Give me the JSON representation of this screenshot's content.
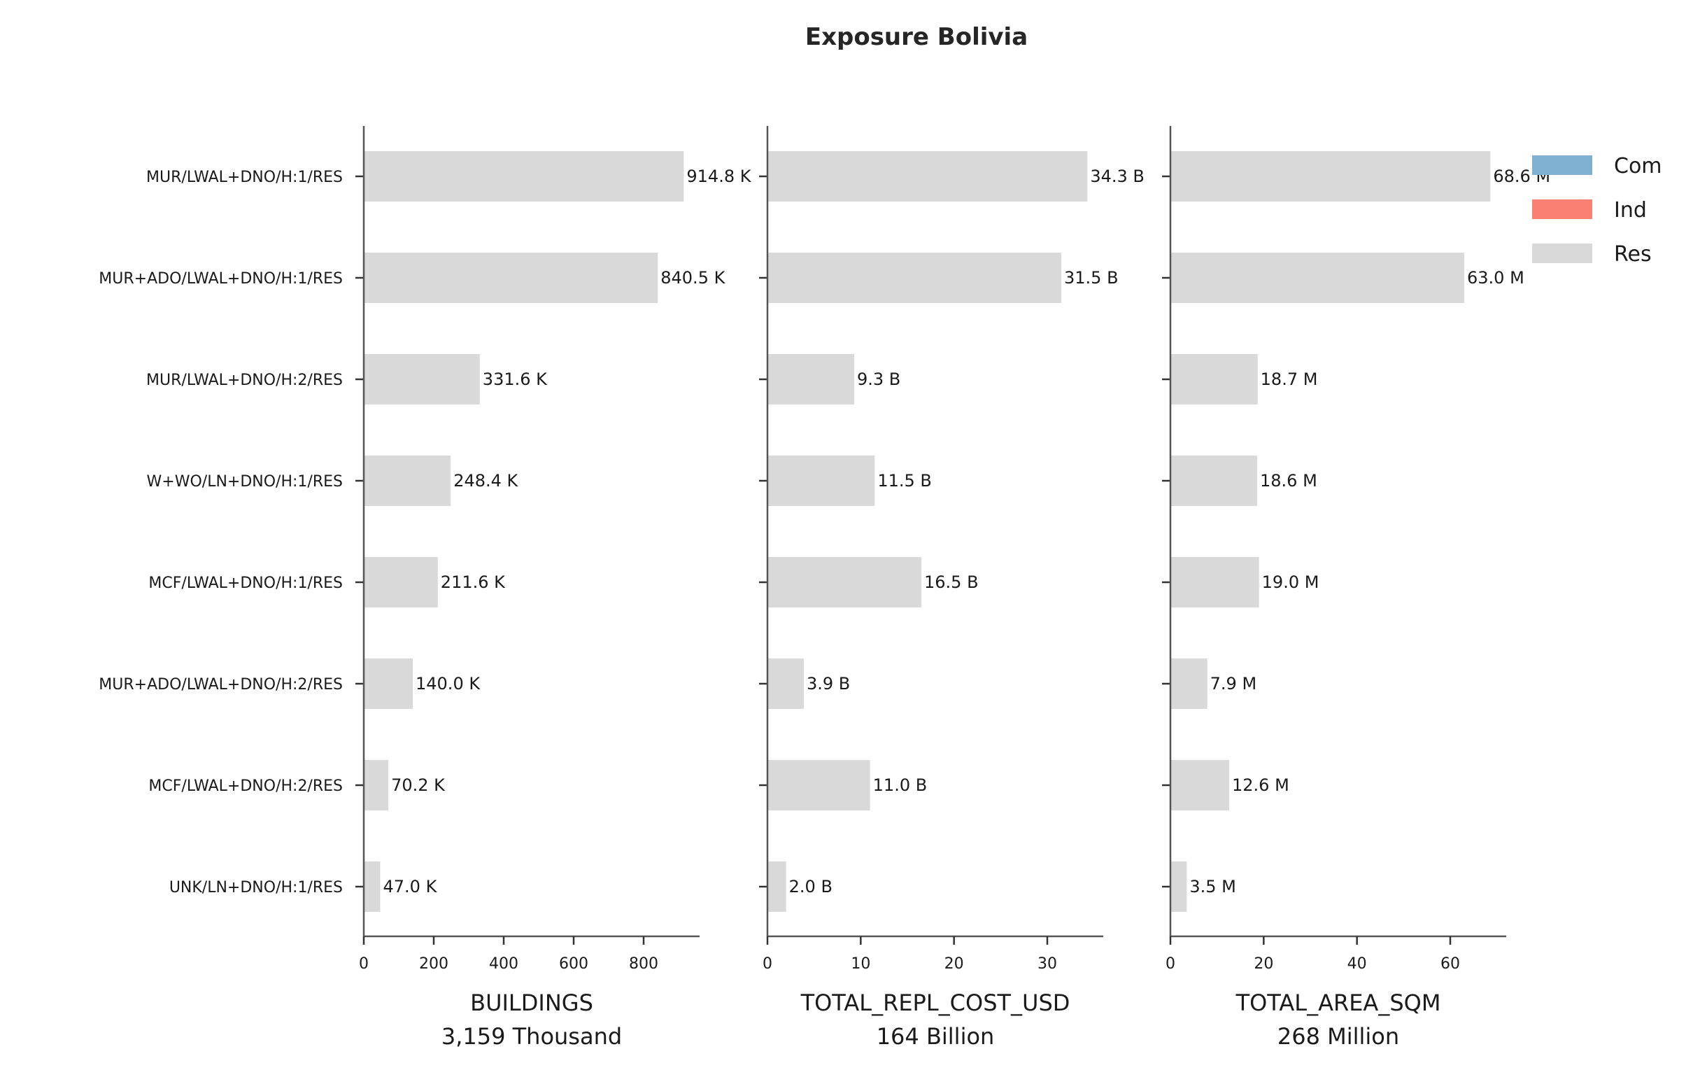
{
  "chart_data": {
    "type": "bar",
    "orientation": "horizontal",
    "title": "Exposure Bolivia",
    "categories": [
      "MUR/LWAL+DNO/H:1/RES",
      "MUR+ADO/LWAL+DNO/H:1/RES",
      "MUR/LWAL+DNO/H:2/RES",
      "W+WO/LN+DNO/H:1/RES",
      "MCF/LWAL+DNO/H:1/RES",
      "MUR+ADO/LWAL+DNO/H:2/RES",
      "MCF/LWAL+DNO/H:2/RES",
      "UNK/LN+DNO/H:1/RES"
    ],
    "legend": {
      "position": "top-right",
      "entries": [
        {
          "name": "Com",
          "color": "#7fb0d2"
        },
        {
          "name": "Ind",
          "color": "#fa8072"
        },
        {
          "name": "Res",
          "color": "#d9d9d9"
        }
      ]
    },
    "panels": [
      {
        "xlabel": "BUILDINGS",
        "total": "3,159 Thousand",
        "xlim": [
          0,
          960
        ],
        "xticks": [
          0,
          200,
          400,
          600,
          800
        ],
        "xtick_labels": [
          "0",
          "200",
          "400",
          "600",
          "800"
        ],
        "series": [
          {
            "name": "Res",
            "values": [
              914.8,
              840.5,
              331.6,
              248.4,
              211.6,
              140.0,
              70.2,
              47.0
            ]
          }
        ],
        "labels": [
          "914.8 K",
          "840.5 K",
          "331.6 K",
          "248.4 K",
          "211.6 K",
          "140.0 K",
          "70.2 K",
          "47.0 K"
        ]
      },
      {
        "xlabel": "TOTAL_REPL_COST_USD",
        "total": "164 Billion",
        "xlim": [
          0,
          36
        ],
        "xticks": [
          0,
          10,
          20,
          30
        ],
        "xtick_labels": [
          "0",
          "10",
          "20",
          "30"
        ],
        "series": [
          {
            "name": "Res",
            "values": [
              34.3,
              31.5,
              9.3,
              11.5,
              16.5,
              3.9,
              11.0,
              2.0
            ]
          }
        ],
        "labels": [
          "34.3 B",
          "31.5 B",
          "9.3 B",
          "11.5 B",
          "16.5 B",
          "3.9 B",
          "11.0 B",
          "2.0 B"
        ]
      },
      {
        "xlabel": "TOTAL_AREA_SQM",
        "total": "268 Million",
        "xlim": [
          0,
          72
        ],
        "xticks": [
          0,
          20,
          40,
          60
        ],
        "xtick_labels": [
          "0",
          "20",
          "40",
          "60"
        ],
        "series": [
          {
            "name": "Res",
            "values": [
              68.6,
              63.0,
              18.7,
              18.6,
              19.0,
              7.9,
              12.6,
              3.5
            ]
          }
        ],
        "labels": [
          "68.6 M",
          "63.0 M",
          "18.7 M",
          "18.6 M",
          "19.0 M",
          "7.9 M",
          "12.6 M",
          "3.5 M"
        ]
      }
    ]
  }
}
